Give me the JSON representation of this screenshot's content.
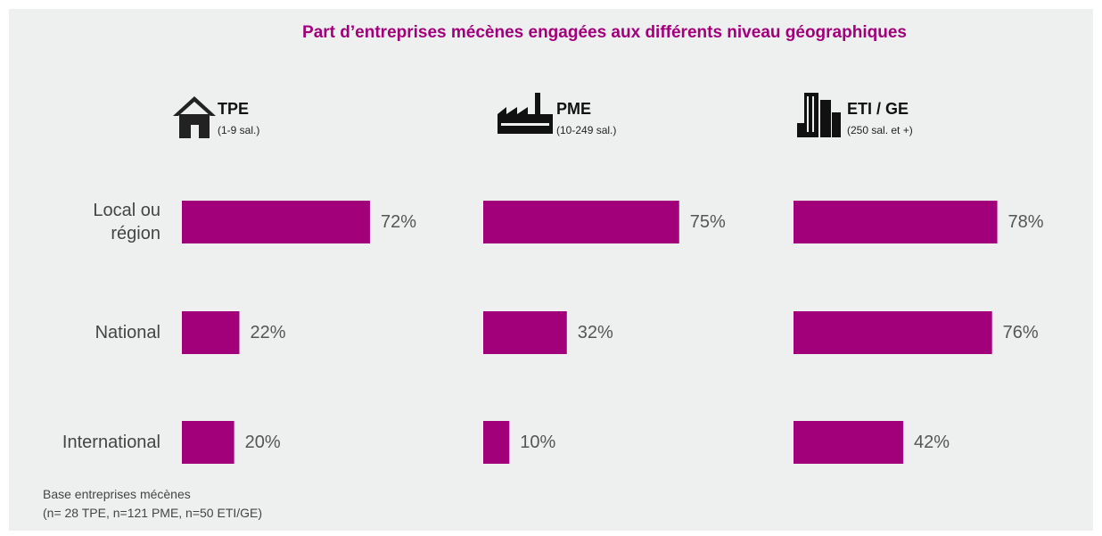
{
  "chart_data": {
    "type": "bar",
    "title": "Part d’entreprises mécènes engagées aux différents niveau géographiques",
    "categories": [
      "Local ou\nrégion",
      "National",
      "International"
    ],
    "color": "#a2007b",
    "series": [
      {
        "name": "TPE",
        "subtitle": "(1-9 sal.)",
        "values": [
          72,
          22,
          20
        ],
        "value_labels": [
          "72%",
          "22%",
          "20%"
        ]
      },
      {
        "name": "PME",
        "subtitle": "(10-249 sal.)",
        "values": [
          75,
          32,
          10
        ],
        "value_labels": [
          "75%",
          "32%",
          "10%"
        ]
      },
      {
        "name": "ETI / GE",
        "subtitle": "(250 sal. et +)",
        "values": [
          78,
          76,
          42
        ],
        "value_labels": [
          "78%",
          "76%",
          "42%"
        ]
      }
    ],
    "note": [
      "Base entreprises mécènes",
      "(n= 28  TPE, n=121 PME, n=50 ETI/GE)"
    ]
  }
}
